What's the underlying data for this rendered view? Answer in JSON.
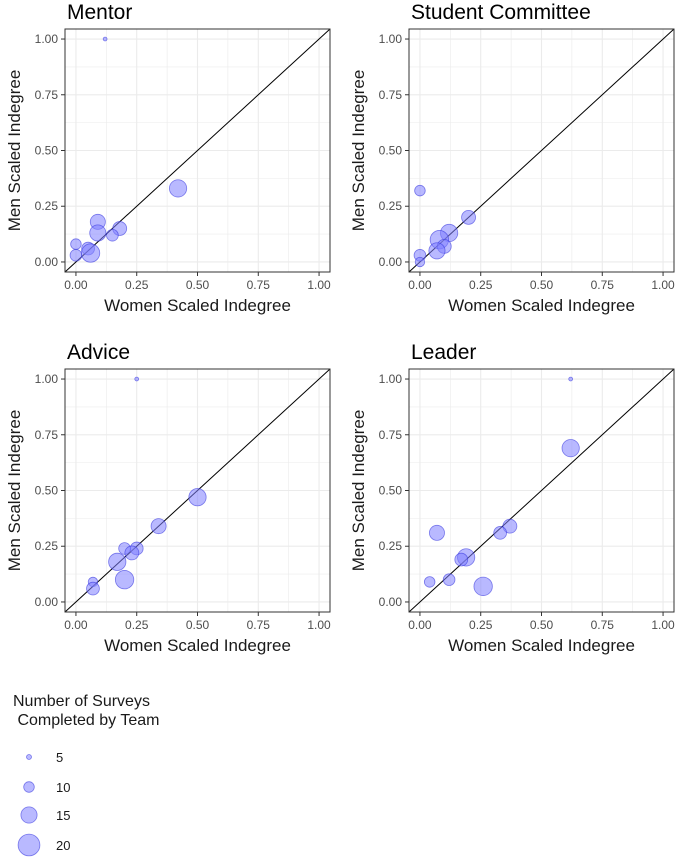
{
  "chart_data": [
    {
      "type": "scatter",
      "title": "Mentor",
      "xlabel": "Women Scaled Indegree",
      "ylabel": "Men Scaled Indegree",
      "xlim": [
        0,
        1
      ],
      "ylim": [
        0,
        1
      ],
      "x_ticks": [
        "0.00",
        "0.25",
        "0.50",
        "0.75",
        "1.00"
      ],
      "y_ticks": [
        "0.00",
        "0.25",
        "0.50",
        "0.75",
        "1.00"
      ],
      "grid": true,
      "reference_line": "y = x",
      "points": [
        {
          "x": 0.12,
          "y": 1.0,
          "size": 4
        },
        {
          "x": 0.42,
          "y": 0.33,
          "size": 16
        },
        {
          "x": 0.09,
          "y": 0.18,
          "size": 14
        },
        {
          "x": 0.18,
          "y": 0.15,
          "size": 13
        },
        {
          "x": 0.15,
          "y": 0.12,
          "size": 11
        },
        {
          "x": 0.09,
          "y": 0.13,
          "size": 15
        },
        {
          "x": 0.0,
          "y": 0.08,
          "size": 10
        },
        {
          "x": 0.05,
          "y": 0.06,
          "size": 12
        },
        {
          "x": 0.0,
          "y": 0.03,
          "size": 11
        },
        {
          "x": 0.06,
          "y": 0.04,
          "size": 17
        }
      ]
    },
    {
      "type": "scatter",
      "title": "Student Committee",
      "xlabel": "Women Scaled Indegree",
      "ylabel": "Men Scaled Indegree",
      "xlim": [
        0,
        1
      ],
      "ylim": [
        0,
        1
      ],
      "x_ticks": [
        "0.00",
        "0.25",
        "0.50",
        "0.75",
        "1.00"
      ],
      "y_ticks": [
        "0.00",
        "0.25",
        "0.50",
        "0.75",
        "1.00"
      ],
      "grid": true,
      "reference_line": "y = x",
      "points": [
        {
          "x": 0.0,
          "y": 0.32,
          "size": 10
        },
        {
          "x": 0.2,
          "y": 0.2,
          "size": 13
        },
        {
          "x": 0.12,
          "y": 0.13,
          "size": 16
        },
        {
          "x": 0.08,
          "y": 0.1,
          "size": 17
        },
        {
          "x": 0.1,
          "y": 0.07,
          "size": 13
        },
        {
          "x": 0.07,
          "y": 0.05,
          "size": 15
        },
        {
          "x": 0.0,
          "y": 0.03,
          "size": 11
        },
        {
          "x": 0.0,
          "y": 0.0,
          "size": 9
        }
      ]
    },
    {
      "type": "scatter",
      "title": "Advice",
      "xlabel": "Women Scaled Indegree",
      "ylabel": "Men Scaled Indegree",
      "xlim": [
        0,
        1
      ],
      "ylim": [
        0,
        1
      ],
      "x_ticks": [
        "0.00",
        "0.25",
        "0.50",
        "0.75",
        "1.00"
      ],
      "y_ticks": [
        "0.00",
        "0.25",
        "0.50",
        "0.75",
        "1.00"
      ],
      "grid": true,
      "reference_line": "y = x",
      "points": [
        {
          "x": 0.25,
          "y": 1.0,
          "size": 4
        },
        {
          "x": 0.5,
          "y": 0.47,
          "size": 16
        },
        {
          "x": 0.34,
          "y": 0.34,
          "size": 14
        },
        {
          "x": 0.2,
          "y": 0.24,
          "size": 11
        },
        {
          "x": 0.25,
          "y": 0.24,
          "size": 12
        },
        {
          "x": 0.23,
          "y": 0.22,
          "size": 13
        },
        {
          "x": 0.17,
          "y": 0.18,
          "size": 16
        },
        {
          "x": 0.2,
          "y": 0.1,
          "size": 17
        },
        {
          "x": 0.07,
          "y": 0.09,
          "size": 9
        },
        {
          "x": 0.07,
          "y": 0.06,
          "size": 12
        }
      ]
    },
    {
      "type": "scatter",
      "title": "Leader",
      "xlabel": "Women Scaled Indegree",
      "ylabel": "Men Scaled Indegree",
      "xlim": [
        0,
        1
      ],
      "ylim": [
        0,
        1
      ],
      "x_ticks": [
        "0.00",
        "0.25",
        "0.50",
        "0.75",
        "1.00"
      ],
      "y_ticks": [
        "0.00",
        "0.25",
        "0.50",
        "0.75",
        "1.00"
      ],
      "grid": true,
      "reference_line": "y = x",
      "points": [
        {
          "x": 0.62,
          "y": 1.0,
          "size": 4
        },
        {
          "x": 0.62,
          "y": 0.69,
          "size": 16
        },
        {
          "x": 0.37,
          "y": 0.34,
          "size": 13
        },
        {
          "x": 0.33,
          "y": 0.31,
          "size": 12
        },
        {
          "x": 0.07,
          "y": 0.31,
          "size": 14
        },
        {
          "x": 0.19,
          "y": 0.2,
          "size": 16
        },
        {
          "x": 0.17,
          "y": 0.19,
          "size": 12
        },
        {
          "x": 0.04,
          "y": 0.09,
          "size": 10
        },
        {
          "x": 0.12,
          "y": 0.1,
          "size": 11
        },
        {
          "x": 0.26,
          "y": 0.07,
          "size": 17
        }
      ]
    }
  ],
  "legend": {
    "title_lines": [
      "Number of Surveys",
      " Completed by Team"
    ],
    "entries": [
      {
        "label": "5",
        "size": 5
      },
      {
        "label": "10",
        "size": 10
      },
      {
        "label": "15",
        "size": 15
      },
      {
        "label": "20",
        "size": 20
      }
    ],
    "placement": "bottom-left"
  },
  "colors": {
    "point_fill": "#8080ff",
    "point_stroke": "#3333dd",
    "panel_border": "#333333",
    "grid": "#ebebeb",
    "reference_line": "#000000"
  }
}
